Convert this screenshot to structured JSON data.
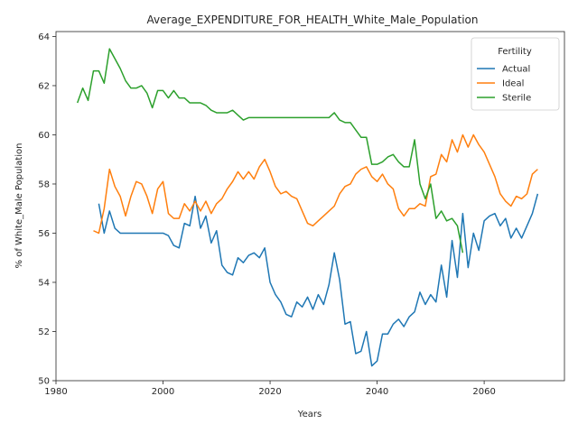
{
  "chart_data": {
    "type": "line",
    "title": "Average_EXPENDITURE_FOR_HEALTH_White_Male_Population",
    "xlabel": "Years",
    "ylabel": "% of White_Male Population",
    "xlim": [
      1980,
      2075
    ],
    "ylim": [
      50,
      64.2
    ],
    "xticks": [
      1980,
      2000,
      2020,
      2040,
      2060
    ],
    "yticks": [
      50,
      52,
      54,
      56,
      58,
      60,
      62,
      64
    ],
    "grid": false,
    "legend": {
      "title": "Fertility",
      "placement": "top-right"
    },
    "series": [
      {
        "name": "Actual",
        "color": "#1f77b4",
        "points": [
          [
            1988,
            57.2
          ],
          [
            1989,
            56.0
          ],
          [
            1990,
            56.9
          ],
          [
            1991,
            56.2
          ],
          [
            1992,
            56.0
          ],
          [
            1993,
            56.0
          ],
          [
            1994,
            56.0
          ],
          [
            1995,
            56.0
          ],
          [
            1996,
            56.0
          ],
          [
            1997,
            56.0
          ],
          [
            1998,
            56.0
          ],
          [
            1999,
            56.0
          ],
          [
            2000,
            56.0
          ],
          [
            2001,
            55.9
          ],
          [
            2002,
            55.5
          ],
          [
            2003,
            55.4
          ],
          [
            2004,
            56.4
          ],
          [
            2005,
            56.3
          ],
          [
            2006,
            57.5
          ],
          [
            2007,
            56.2
          ],
          [
            2008,
            56.7
          ],
          [
            2009,
            55.6
          ],
          [
            2010,
            56.1
          ],
          [
            2011,
            54.7
          ],
          [
            2012,
            54.4
          ],
          [
            2013,
            54.3
          ],
          [
            2014,
            55.0
          ],
          [
            2015,
            54.8
          ],
          [
            2016,
            55.1
          ],
          [
            2017,
            55.2
          ],
          [
            2018,
            55.0
          ],
          [
            2019,
            55.4
          ],
          [
            2020,
            54.0
          ],
          [
            2021,
            53.5
          ],
          [
            2022,
            53.2
          ],
          [
            2023,
            52.7
          ],
          [
            2024,
            52.6
          ],
          [
            2025,
            53.2
          ],
          [
            2026,
            53.0
          ],
          [
            2027,
            53.4
          ],
          [
            2028,
            52.9
          ],
          [
            2029,
            53.5
          ],
          [
            2030,
            53.1
          ],
          [
            2031,
            53.9
          ],
          [
            2032,
            55.2
          ],
          [
            2033,
            54.1
          ],
          [
            2034,
            52.3
          ],
          [
            2035,
            52.4
          ],
          [
            2036,
            51.1
          ],
          [
            2037,
            51.2
          ],
          [
            2038,
            52.0
          ],
          [
            2039,
            50.6
          ],
          [
            2040,
            50.8
          ],
          [
            2041,
            51.9
          ],
          [
            2042,
            51.9
          ],
          [
            2043,
            52.3
          ],
          [
            2044,
            52.5
          ],
          [
            2045,
            52.2
          ],
          [
            2046,
            52.6
          ],
          [
            2047,
            52.8
          ],
          [
            2048,
            53.6
          ],
          [
            2049,
            53.1
          ],
          [
            2050,
            53.5
          ],
          [
            2051,
            53.2
          ],
          [
            2052,
            54.7
          ],
          [
            2053,
            53.4
          ],
          [
            2054,
            55.7
          ],
          [
            2055,
            54.2
          ],
          [
            2056,
            56.8
          ],
          [
            2057,
            54.6
          ],
          [
            2058,
            56.0
          ],
          [
            2059,
            55.3
          ],
          [
            2060,
            56.5
          ],
          [
            2061,
            56.7
          ],
          [
            2062,
            56.8
          ],
          [
            2063,
            56.3
          ],
          [
            2064,
            56.6
          ],
          [
            2065,
            55.8
          ],
          [
            2066,
            56.2
          ],
          [
            2067,
            55.8
          ],
          [
            2068,
            56.3
          ],
          [
            2069,
            56.8
          ],
          [
            2070,
            57.6
          ]
        ]
      },
      {
        "name": "Ideal",
        "color": "#ff7f0e",
        "points": [
          [
            1987,
            56.1
          ],
          [
            1988,
            56.0
          ],
          [
            1989,
            57.0
          ],
          [
            1990,
            58.6
          ],
          [
            1991,
            57.9
          ],
          [
            1992,
            57.5
          ],
          [
            1993,
            56.7
          ],
          [
            1994,
            57.5
          ],
          [
            1995,
            58.1
          ],
          [
            1996,
            58.0
          ],
          [
            1997,
            57.5
          ],
          [
            1998,
            56.8
          ],
          [
            1999,
            57.8
          ],
          [
            2000,
            58.1
          ],
          [
            2001,
            56.8
          ],
          [
            2002,
            56.6
          ],
          [
            2003,
            56.6
          ],
          [
            2004,
            57.2
          ],
          [
            2005,
            56.9
          ],
          [
            2006,
            57.3
          ],
          [
            2007,
            56.9
          ],
          [
            2008,
            57.3
          ],
          [
            2009,
            56.8
          ],
          [
            2010,
            57.2
          ],
          [
            2011,
            57.4
          ],
          [
            2012,
            57.8
          ],
          [
            2013,
            58.1
          ],
          [
            2014,
            58.5
          ],
          [
            2015,
            58.2
          ],
          [
            2016,
            58.5
          ],
          [
            2017,
            58.2
          ],
          [
            2018,
            58.7
          ],
          [
            2019,
            59.0
          ],
          [
            2020,
            58.5
          ],
          [
            2021,
            57.9
          ],
          [
            2022,
            57.6
          ],
          [
            2023,
            57.7
          ],
          [
            2024,
            57.5
          ],
          [
            2025,
            57.4
          ],
          [
            2026,
            56.9
          ],
          [
            2027,
            56.4
          ],
          [
            2028,
            56.3
          ],
          [
            2029,
            56.5
          ],
          [
            2030,
            56.7
          ],
          [
            2031,
            56.9
          ],
          [
            2032,
            57.1
          ],
          [
            2033,
            57.6
          ],
          [
            2034,
            57.9
          ],
          [
            2035,
            58.0
          ],
          [
            2036,
            58.4
          ],
          [
            2037,
            58.6
          ],
          [
            2038,
            58.7
          ],
          [
            2039,
            58.3
          ],
          [
            2040,
            58.1
          ],
          [
            2041,
            58.4
          ],
          [
            2042,
            58.0
          ],
          [
            2043,
            57.8
          ],
          [
            2044,
            57.0
          ],
          [
            2045,
            56.7
          ],
          [
            2046,
            57.0
          ],
          [
            2047,
            57.0
          ],
          [
            2048,
            57.2
          ],
          [
            2049,
            57.1
          ],
          [
            2050,
            58.3
          ],
          [
            2051,
            58.4
          ],
          [
            2052,
            59.2
          ],
          [
            2053,
            58.9
          ],
          [
            2054,
            59.8
          ],
          [
            2055,
            59.3
          ],
          [
            2056,
            60.0
          ],
          [
            2057,
            59.5
          ],
          [
            2058,
            60.0
          ],
          [
            2059,
            59.6
          ],
          [
            2060,
            59.3
          ],
          [
            2061,
            58.8
          ],
          [
            2062,
            58.3
          ],
          [
            2063,
            57.6
          ],
          [
            2064,
            57.3
          ],
          [
            2065,
            57.1
          ],
          [
            2066,
            57.5
          ],
          [
            2067,
            57.4
          ],
          [
            2068,
            57.6
          ],
          [
            2069,
            58.4
          ],
          [
            2070,
            58.6
          ]
        ]
      },
      {
        "name": "Sterile",
        "color": "#2ca02c",
        "points": [
          [
            1984,
            61.3
          ],
          [
            1985,
            61.9
          ],
          [
            1986,
            61.4
          ],
          [
            1987,
            62.6
          ],
          [
            1988,
            62.6
          ],
          [
            1989,
            62.1
          ],
          [
            1990,
            63.5
          ],
          [
            1991,
            63.1
          ],
          [
            1992,
            62.7
          ],
          [
            1993,
            62.2
          ],
          [
            1994,
            61.9
          ],
          [
            1995,
            61.9
          ],
          [
            1996,
            62.0
          ],
          [
            1997,
            61.7
          ],
          [
            1998,
            61.1
          ],
          [
            1999,
            61.8
          ],
          [
            2000,
            61.8
          ],
          [
            2001,
            61.5
          ],
          [
            2002,
            61.8
          ],
          [
            2003,
            61.5
          ],
          [
            2004,
            61.5
          ],
          [
            2005,
            61.3
          ],
          [
            2006,
            61.3
          ],
          [
            2007,
            61.3
          ],
          [
            2008,
            61.2
          ],
          [
            2009,
            61.0
          ],
          [
            2010,
            60.9
          ],
          [
            2011,
            60.9
          ],
          [
            2012,
            60.9
          ],
          [
            2013,
            61.0
          ],
          [
            2014,
            60.8
          ],
          [
            2015,
            60.6
          ],
          [
            2016,
            60.7
          ],
          [
            2017,
            60.7
          ],
          [
            2018,
            60.7
          ],
          [
            2020,
            60.7
          ],
          [
            2025,
            60.7
          ],
          [
            2030,
            60.7
          ],
          [
            2031,
            60.7
          ],
          [
            2032,
            60.9
          ],
          [
            2033,
            60.6
          ],
          [
            2034,
            60.5
          ],
          [
            2035,
            60.5
          ],
          [
            2036,
            60.2
          ],
          [
            2037,
            59.9
          ],
          [
            2038,
            59.9
          ],
          [
            2039,
            58.8
          ],
          [
            2040,
            58.8
          ],
          [
            2041,
            58.9
          ],
          [
            2042,
            59.1
          ],
          [
            2043,
            59.2
          ],
          [
            2044,
            58.9
          ],
          [
            2045,
            58.7
          ],
          [
            2046,
            58.7
          ],
          [
            2047,
            59.8
          ],
          [
            2048,
            58.0
          ],
          [
            2049,
            57.4
          ],
          [
            2050,
            58.0
          ],
          [
            2051,
            56.6
          ],
          [
            2052,
            56.9
          ],
          [
            2053,
            56.5
          ],
          [
            2054,
            56.6
          ],
          [
            2055,
            56.3
          ],
          [
            2056,
            55.2
          ]
        ]
      }
    ]
  }
}
